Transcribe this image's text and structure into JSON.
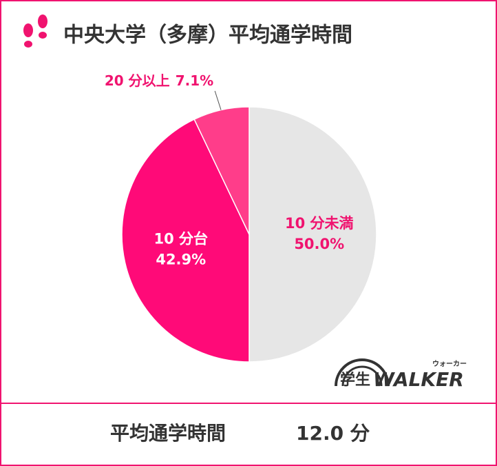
{
  "chart_data": {
    "type": "pie",
    "title": "中央大学（多摩）平均通学時間",
    "categories": [
      "10 分未満",
      "10 分台",
      "20 分以上"
    ],
    "values": [
      50.0,
      42.9,
      7.1
    ],
    "value_labels": [
      "50.0%",
      "42.9%",
      "7.1%"
    ],
    "colors": [
      "#e6e6e6",
      "#ff0a78",
      "#ff3d8a"
    ],
    "label_colors": [
      "#f0136f",
      "#ffffff",
      "#f0136f"
    ],
    "summary": {
      "label": "平均通学時間",
      "value": "12.0 分"
    }
  },
  "logo": {
    "main": "学生",
    "brand": "WALKER",
    "kana": "ウォーカー"
  }
}
